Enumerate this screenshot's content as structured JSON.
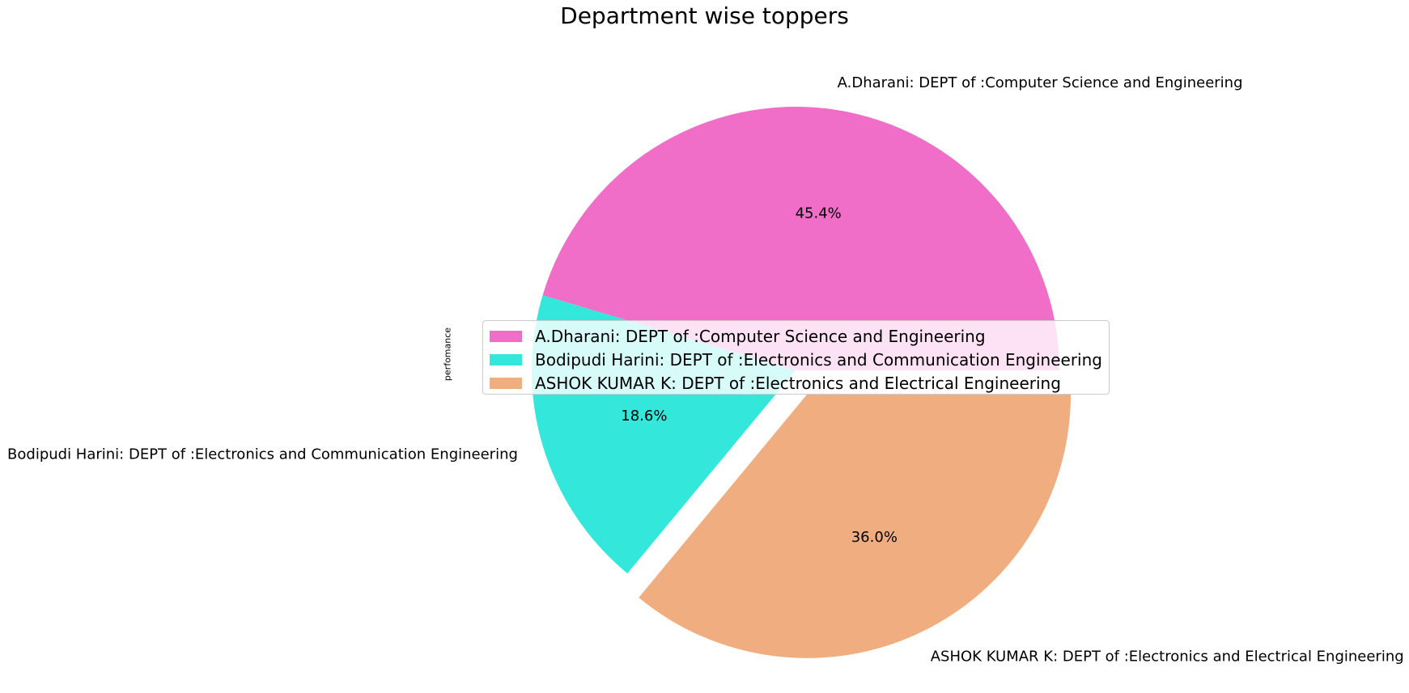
{
  "chart_data": {
    "type": "pie",
    "title": "Department wise toppers",
    "ylabel": "perfomance",
    "labels": [
      "A.Dharani: DEPT of :Computer Science and Engineering",
      "Bodipudi Harini: DEPT of :Electronics and Communication Engineering",
      "ASHOK KUMAR K: DEPT of :Electronics and Electrical Engineering"
    ],
    "values": [
      45.4,
      18.6,
      36.0
    ],
    "value_labels": [
      "45.4%",
      "18.6%",
      "36.0%"
    ],
    "colors": [
      "#f06ec8",
      "#33e8da",
      "#f0ae80"
    ],
    "exploded": [
      false,
      false,
      true
    ],
    "start_angle_deg": 0,
    "direction": "counterclockwise",
    "legend": {
      "placement": "center",
      "entries": [
        "A.Dharani: DEPT of :Computer Science and Engineering",
        "Bodipudi Harini: DEPT of :Electronics and Communication Engineering",
        "ASHOK KUMAR K: DEPT of :Electronics and Electrical Engineering"
      ]
    }
  }
}
